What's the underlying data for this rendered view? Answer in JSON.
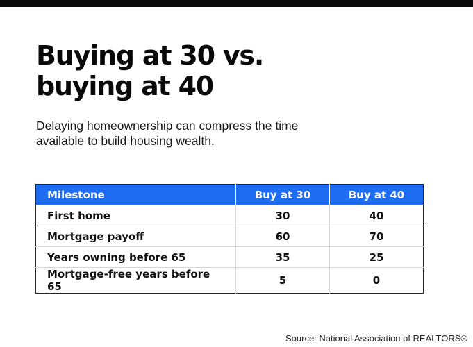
{
  "title_line1": "Buying at 30 vs.",
  "title_line2": "buying at 40",
  "subtitle": "Delaying homeownership can compress the time available to build housing wealth.",
  "table": {
    "headers": [
      "Milestone",
      "Buy at 30",
      "Buy at 40"
    ],
    "rows": [
      [
        "First home",
        "30",
        "40"
      ],
      [
        "Mortgage payoff",
        "60",
        "70"
      ],
      [
        "Years owning before 65",
        "35",
        "25"
      ],
      [
        "Mortgage-free years before 65",
        "5",
        "0"
      ]
    ]
  },
  "source": "Source: National Association of REALTORS®",
  "colors": {
    "header_bg": "#1d6cf2",
    "top_bar": "#0a0a0a"
  }
}
